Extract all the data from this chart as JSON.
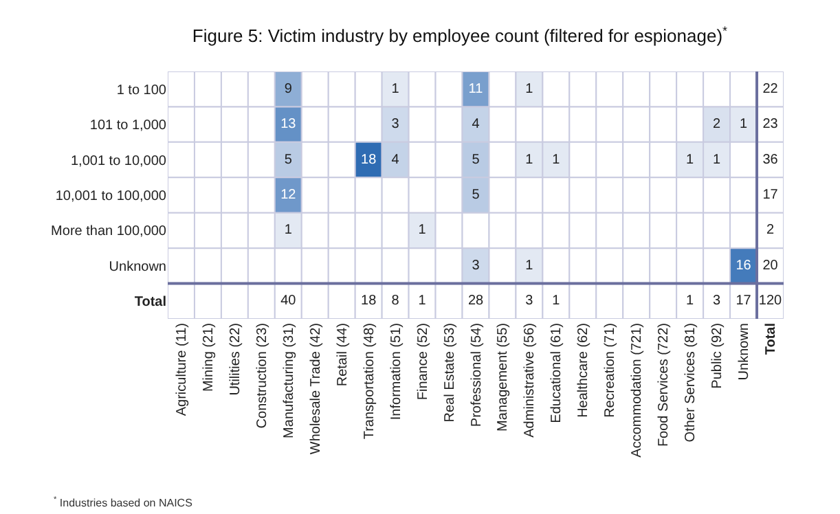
{
  "chart_data": {
    "type": "heatmap",
    "title": "Figure 5: Victim industry by employee count (filtered for espionage)$^{*}$",
    "categories": [
      "Agriculture (11)",
      "Mining (21)",
      "Utilities (22)",
      "Construction (23)",
      "Manufacturing (31)",
      "Wholesale Trade (42)",
      "Retail (44)",
      "Transportation (48)",
      "Information (51)",
      "Finance (52)",
      "Real Estate (53)",
      "Professional (54)",
      "Management (55)",
      "Administrative (56)",
      "Educational (61)",
      "Healthcare (62)",
      "Recreation (71)",
      "Accommodation (721)",
      "Food Services (722)",
      "Other Services (81)",
      "Public (92)",
      "Unknown",
      "Total"
    ],
    "y_categories": [
      "1 to 100",
      "101 to 1,000",
      "1,001 to 10,000",
      "10,001 to 100,000",
      "More than 100,000",
      "Unknown",
      "Total"
    ],
    "cells": [
      [
        null,
        null,
        null,
        null,
        9,
        null,
        null,
        null,
        1,
        null,
        null,
        11,
        null,
        1,
        null,
        null,
        null,
        null,
        null,
        null,
        null,
        null,
        null
      ],
      [
        null,
        null,
        null,
        null,
        13,
        null,
        null,
        null,
        3,
        null,
        null,
        4,
        null,
        null,
        null,
        null,
        null,
        null,
        null,
        null,
        2,
        1,
        null
      ],
      [
        null,
        null,
        null,
        null,
        5,
        null,
        null,
        18,
        4,
        null,
        null,
        5,
        null,
        1,
        1,
        null,
        null,
        null,
        null,
        1,
        1,
        null,
        null
      ],
      [
        null,
        null,
        null,
        null,
        12,
        null,
        null,
        null,
        null,
        null,
        null,
        5,
        null,
        null,
        null,
        null,
        null,
        null,
        null,
        null,
        null,
        null,
        null
      ],
      [
        null,
        null,
        null,
        null,
        1,
        null,
        null,
        null,
        null,
        1,
        null,
        null,
        null,
        null,
        null,
        null,
        null,
        null,
        null,
        null,
        null,
        null,
        null
      ],
      [
        null,
        null,
        null,
        null,
        null,
        null,
        null,
        null,
        null,
        null,
        null,
        3,
        null,
        1,
        null,
        null,
        null,
        null,
        null,
        null,
        null,
        16,
        null
      ],
      [
        null,
        null,
        null,
        null,
        null,
        null,
        null,
        null,
        null,
        null,
        null,
        null,
        null,
        null,
        null,
        null,
        null,
        null,
        null,
        null,
        null,
        null,
        null
      ]
    ],
    "cell_labels": [
      [
        null,
        null,
        null,
        null,
        "9",
        null,
        null,
        null,
        "1",
        null,
        null,
        "11",
        null,
        "1",
        null,
        null,
        null,
        null,
        null,
        null,
        null,
        null,
        "22"
      ],
      [
        null,
        null,
        null,
        null,
        "13",
        null,
        null,
        null,
        "3",
        null,
        null,
        "4",
        null,
        null,
        null,
        null,
        null,
        null,
        null,
        null,
        "2",
        "1",
        "23"
      ],
      [
        null,
        null,
        null,
        null,
        "5",
        null,
        null,
        "18",
        "4",
        null,
        null,
        "5",
        null,
        "1",
        "1",
        null,
        null,
        null,
        null,
        "1",
        "1",
        null,
        "36"
      ],
      [
        null,
        null,
        null,
        null,
        "12",
        null,
        null,
        null,
        null,
        null,
        null,
        "5",
        null,
        null,
        null,
        null,
        null,
        null,
        null,
        null,
        null,
        null,
        "17"
      ],
      [
        null,
        null,
        null,
        null,
        "1",
        null,
        null,
        null,
        null,
        "1",
        null,
        null,
        null,
        null,
        null,
        null,
        null,
        null,
        null,
        null,
        null,
        null,
        "2"
      ],
      [
        null,
        null,
        null,
        null,
        null,
        null,
        null,
        null,
        null,
        null,
        null,
        "3",
        null,
        "1",
        null,
        null,
        null,
        null,
        null,
        null,
        null,
        "16",
        "20"
      ],
      [
        null,
        null,
        null,
        null,
        "40",
        null,
        null,
        "18",
        "8",
        "1",
        null,
        "28",
        null,
        "3",
        "1",
        null,
        null,
        null,
        null,
        "1",
        "3",
        "17",
        "120"
      ]
    ],
    "annotations": [
      "$^{*}$ Industries based on NAICS"
    ]
  }
}
